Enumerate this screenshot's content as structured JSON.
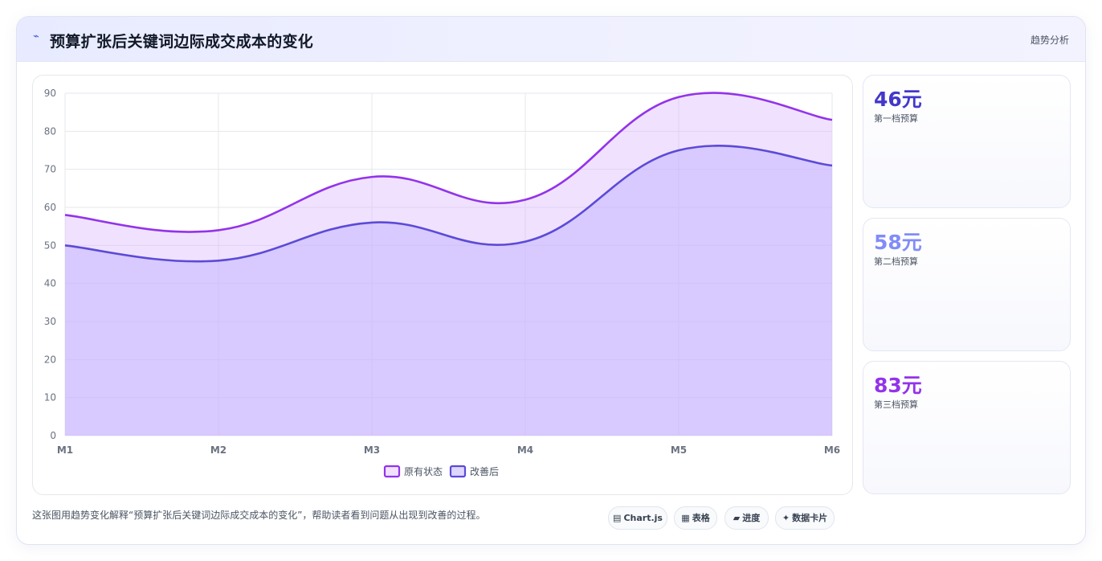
{
  "header": {
    "icon": "chart-trend-icon",
    "title": "预算扩张后关键词边际成交成本的变化",
    "tag": "趋势分析"
  },
  "stats": [
    {
      "value": "46元",
      "label": "第一档预算",
      "color": "#4338ca"
    },
    {
      "value": "58元",
      "label": "第二档预算",
      "color": "#818cf8"
    },
    {
      "value": "83元",
      "label": "第三档预算",
      "color": "#9333ea"
    }
  ],
  "footer": {
    "text": "这张图用趋势变化解释“预算扩张后关键词边际成交成本的变化”，帮助读者看到问题从出现到改善的过程。",
    "pills": [
      {
        "icon": "▤",
        "label": "Chart.js"
      },
      {
        "icon": "▦",
        "label": "表格"
      },
      {
        "icon": "▰",
        "label": "进度"
      },
      {
        "icon": "✦",
        "label": "数据卡片"
      }
    ]
  },
  "chart_data": {
    "type": "area",
    "categories": [
      "M1",
      "M2",
      "M3",
      "M4",
      "M5",
      "M6"
    ],
    "ylim": [
      0,
      90
    ],
    "yticks": [
      0,
      10,
      20,
      30,
      40,
      50,
      60,
      70,
      80,
      90
    ],
    "grid": true,
    "legend_position": "bottom",
    "series": [
      {
        "name": "原有状态",
        "values": [
          58,
          54,
          68,
          62,
          89,
          83
        ],
        "color": "#9333ea",
        "fill": "rgba(216,180,254,0.38)"
      },
      {
        "name": "改善后",
        "values": [
          50,
          46,
          56,
          51,
          75,
          71
        ],
        "color": "#5b4bd6",
        "fill": "rgba(196,181,253,0.55)"
      }
    ]
  }
}
